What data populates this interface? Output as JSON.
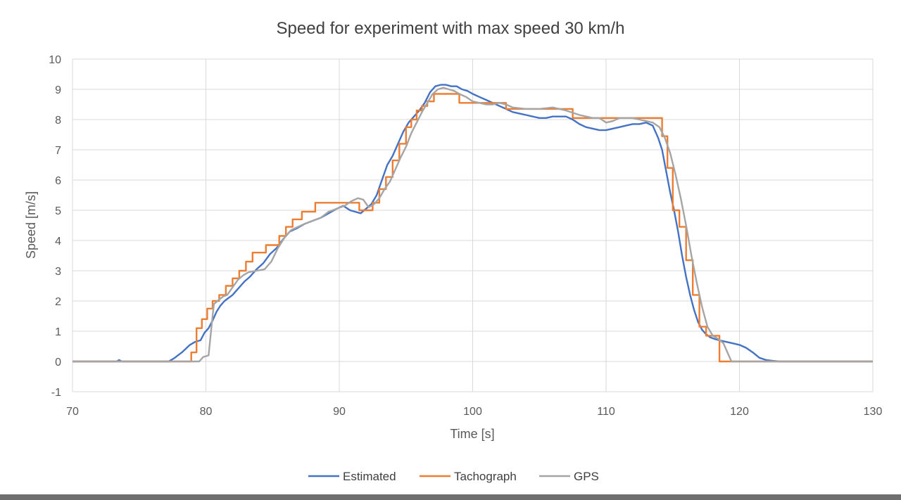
{
  "chart_data": {
    "type": "line",
    "title": "Speed for experiment with max speed 30 km/h",
    "xlabel": "Time [s]",
    "ylabel": "Speed [m/s]",
    "xlim": [
      70,
      130
    ],
    "ylim": [
      -1,
      10
    ],
    "xticks": [
      70,
      80,
      90,
      100,
      110,
      120,
      130
    ],
    "yticks": [
      -1,
      0,
      1,
      2,
      3,
      4,
      5,
      6,
      7,
      8,
      9,
      10
    ],
    "xtick_labels": [
      "70",
      "80",
      "90",
      "100",
      "110",
      "120",
      "130"
    ],
    "ytick_labels": [
      "-1",
      "0",
      "1",
      "2",
      "3",
      "4",
      "5",
      "6",
      "7",
      "8",
      "9",
      "10"
    ],
    "grid": true,
    "legend": "bottom",
    "series": [
      {
        "name": "Estimated",
        "color": "#4472c4",
        "step": false,
        "x": [
          70,
          73.3,
          73.5,
          73.7,
          77.2,
          77.6,
          78.2,
          78.8,
          79.2,
          79.6,
          79.9,
          80.2,
          80.5,
          80.8,
          81.1,
          81.4,
          81.7,
          82.0,
          82.3,
          82.6,
          82.9,
          83.3,
          83.8,
          84.3,
          84.8,
          85.3,
          85.8,
          86.3,
          86.8,
          87.4,
          88.0,
          88.6,
          89.2,
          89.8,
          90.3,
          90.8,
          91.2,
          91.6,
          92.0,
          92.4,
          92.8,
          93.2,
          93.6,
          94.0,
          94.4,
          94.8,
          95.2,
          95.6,
          96.0,
          96.4,
          96.8,
          97.2,
          97.6,
          98.0,
          98.4,
          98.8,
          99.2,
          99.6,
          100.0,
          100.5,
          101.0,
          101.5,
          102.0,
          102.5,
          103.0,
          103.5,
          104.0,
          104.5,
          105.0,
          105.5,
          106.0,
          106.5,
          107.0,
          107.5,
          108.0,
          108.5,
          109.0,
          109.5,
          110.0,
          110.5,
          111.0,
          111.5,
          112.0,
          112.5,
          113.0,
          113.5,
          113.9,
          114.2,
          114.5,
          114.8,
          115.1,
          115.4,
          115.7,
          116.0,
          116.3,
          116.6,
          116.9,
          117.2,
          117.5,
          117.8,
          118.1,
          118.5,
          119.0,
          119.5,
          120.0,
          120.5,
          121.0,
          121.5,
          122.0,
          122.5,
          123.0,
          125.0,
          130.0
        ],
        "y": [
          0,
          0,
          0.05,
          0,
          0,
          0.1,
          0.3,
          0.55,
          0.65,
          0.7,
          0.95,
          1.1,
          1.35,
          1.65,
          1.85,
          2.0,
          2.1,
          2.2,
          2.35,
          2.5,
          2.65,
          2.8,
          3.05,
          3.25,
          3.55,
          3.75,
          4.05,
          4.3,
          4.4,
          4.55,
          4.65,
          4.75,
          4.9,
          5.05,
          5.15,
          5.0,
          4.95,
          4.9,
          5.05,
          5.2,
          5.5,
          6.0,
          6.5,
          6.8,
          7.2,
          7.6,
          7.9,
          8.1,
          8.3,
          8.55,
          8.9,
          9.1,
          9.15,
          9.15,
          9.1,
          9.1,
          9.0,
          8.95,
          8.85,
          8.75,
          8.65,
          8.55,
          8.45,
          8.35,
          8.25,
          8.2,
          8.15,
          8.1,
          8.05,
          8.05,
          8.1,
          8.1,
          8.1,
          8.0,
          7.85,
          7.75,
          7.7,
          7.65,
          7.65,
          7.7,
          7.75,
          7.8,
          7.85,
          7.85,
          7.9,
          7.8,
          7.4,
          7.0,
          6.3,
          5.6,
          5.0,
          4.3,
          3.5,
          2.8,
          2.2,
          1.7,
          1.3,
          1.05,
          0.9,
          0.8,
          0.75,
          0.7,
          0.65,
          0.6,
          0.55,
          0.45,
          0.3,
          0.12,
          0.05,
          0.02,
          0,
          0,
          0
        ]
      },
      {
        "name": "Tachograph",
        "color": "#ed7d31",
        "step": true,
        "x": [
          70,
          78.9,
          79.3,
          79.7,
          80.1,
          80.5,
          81.0,
          81.5,
          82.0,
          82.5,
          83.0,
          83.5,
          84.0,
          84.5,
          85.5,
          86.0,
          86.5,
          87.2,
          88.2,
          90.0,
          91.5,
          92.5,
          93.0,
          93.5,
          94.0,
          94.5,
          95.0,
          95.4,
          95.8,
          96.2,
          96.6,
          97.1,
          97.6,
          99.0,
          102.5,
          107.5,
          114.2,
          114.6,
          115.0,
          115.5,
          116.0,
          116.5,
          117.0,
          117.5,
          118.0,
          118.5,
          119.5,
          130
        ],
        "y": [
          0,
          0.3,
          1.1,
          1.4,
          1.75,
          2.0,
          2.2,
          2.5,
          2.75,
          3.0,
          3.3,
          3.6,
          3.6,
          3.85,
          4.15,
          4.45,
          4.7,
          4.95,
          5.25,
          5.25,
          5.0,
          5.25,
          5.7,
          6.1,
          6.65,
          7.2,
          7.75,
          8.0,
          8.3,
          8.45,
          8.6,
          8.85,
          8.85,
          8.55,
          8.35,
          8.05,
          7.45,
          6.4,
          5.0,
          4.45,
          3.35,
          2.2,
          1.15,
          0.85,
          0.85,
          0.0,
          0,
          0
        ]
      },
      {
        "name": "GPS",
        "color": "#a5a5a5",
        "step": false,
        "x": [
          70,
          79.5,
          79.8,
          80.2,
          80.5,
          80.6,
          81.0,
          81.3,
          81.6,
          82.0,
          82.4,
          82.8,
          83.2,
          83.8,
          84.4,
          84.9,
          85.4,
          85.9,
          86.4,
          86.9,
          87.4,
          88.0,
          88.6,
          89.2,
          89.8,
          90.4,
          90.9,
          91.4,
          91.8,
          92.2,
          92.6,
          93.0,
          93.4,
          93.8,
          94.2,
          94.6,
          95.0,
          95.4,
          95.8,
          96.2,
          96.6,
          97.0,
          97.4,
          97.8,
          98.2,
          98.6,
          99.0,
          99.5,
          100.0,
          100.5,
          101.0,
          101.5,
          102.0,
          102.5,
          103.0,
          104.0,
          105.0,
          106.0,
          107.0,
          108.0,
          109.0,
          109.5,
          110.0,
          110.5,
          111.0,
          111.5,
          112.0,
          112.5,
          113.0,
          113.5,
          114.0,
          114.4,
          114.8,
          115.2,
          115.6,
          116.0,
          116.4,
          116.8,
          117.2,
          117.6,
          118.0,
          118.4,
          118.8,
          119.1,
          119.4,
          120.0,
          125.0,
          130.0
        ],
        "y": [
          0,
          0,
          0.15,
          0.2,
          1.5,
          1.9,
          2.05,
          2.15,
          2.2,
          2.45,
          2.7,
          2.85,
          2.95,
          3.0,
          3.05,
          3.3,
          3.75,
          4.1,
          4.35,
          4.45,
          4.55,
          4.65,
          4.75,
          4.95,
          5.05,
          5.15,
          5.3,
          5.4,
          5.35,
          5.1,
          5.2,
          5.4,
          5.7,
          5.95,
          6.35,
          6.75,
          7.1,
          7.55,
          7.9,
          8.25,
          8.55,
          8.85,
          9.0,
          9.05,
          9.0,
          8.95,
          8.85,
          8.75,
          8.6,
          8.55,
          8.5,
          8.5,
          8.55,
          8.5,
          8.4,
          8.35,
          8.35,
          8.4,
          8.3,
          8.15,
          8.05,
          8.05,
          7.9,
          7.95,
          8.05,
          8.05,
          8.05,
          8.0,
          7.95,
          7.9,
          7.75,
          7.4,
          6.9,
          6.2,
          5.4,
          4.5,
          3.5,
          2.6,
          1.8,
          1.15,
          0.85,
          0.75,
          0.6,
          0.3,
          0.0,
          0,
          0,
          0
        ]
      }
    ]
  }
}
